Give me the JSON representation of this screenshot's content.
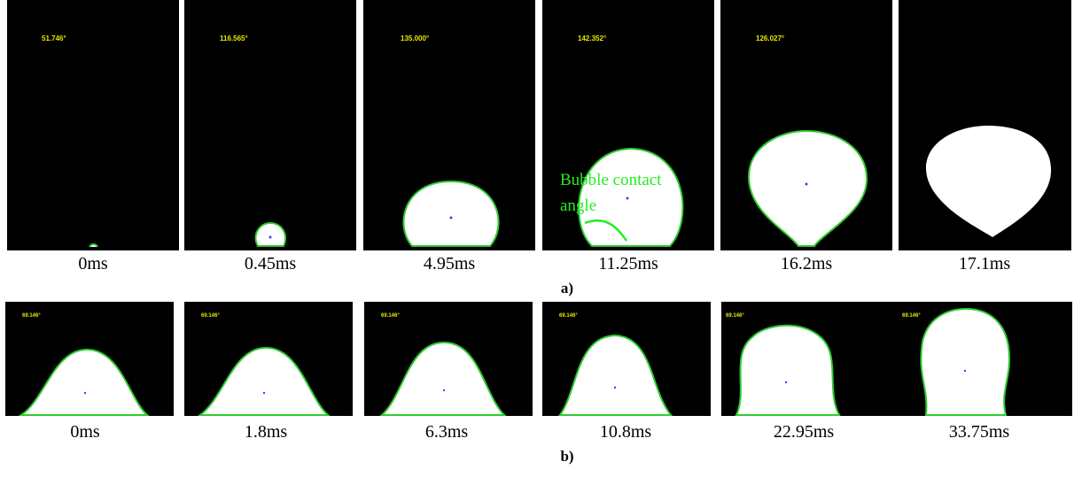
{
  "panel_a": {
    "frames": [
      {
        "angle": "51.746°",
        "time": "0ms"
      },
      {
        "angle": "116.565°",
        "time": "0.45ms"
      },
      {
        "angle": "135.000°",
        "time": "4.95ms"
      },
      {
        "angle": "142.352°",
        "time": "11.25ms"
      },
      {
        "angle": "126.027°",
        "time": "16.2ms"
      },
      {
        "angle": null,
        "time": "17.1ms"
      }
    ],
    "annotation": [
      "Bubble contact",
      "angle"
    ],
    "label": "a)"
  },
  "panel_b": {
    "frames": [
      {
        "angle": "69.146°",
        "time": "0ms"
      },
      {
        "angle": "69.146°",
        "time": "1.8ms"
      },
      {
        "angle": "69.146°",
        "time": "6.3ms"
      },
      {
        "angle": "69.146°",
        "time": "10.8ms"
      },
      {
        "angle": "69.146°",
        "time": "22.95ms"
      },
      {
        "angle": "69.146°",
        "time": "33.75ms"
      }
    ],
    "label": "b)"
  }
}
